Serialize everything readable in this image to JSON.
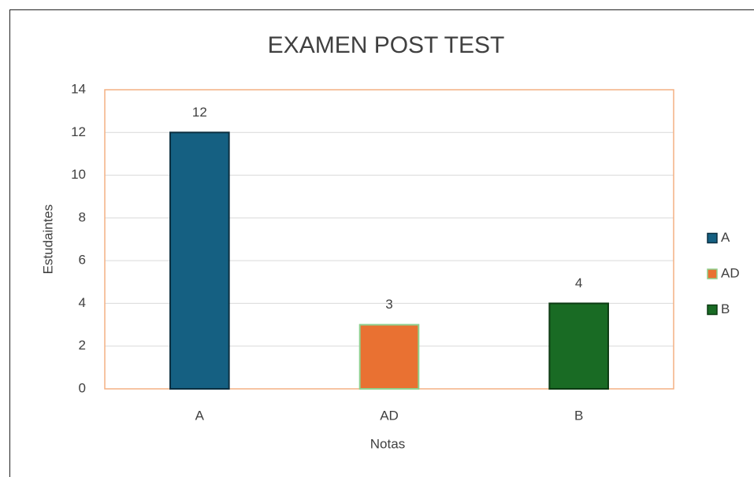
{
  "chart_data": {
    "type": "bar",
    "title": "EXAMEN POST TEST",
    "x_label": "Notas",
    "y_label": "Estudaintes",
    "categories": [
      "A",
      "AD",
      "B"
    ],
    "values": [
      12,
      3,
      4
    ],
    "colors": [
      "#156082",
      "#e97132",
      "#196b24"
    ],
    "edgecolors": [
      "#0b2f40",
      "#8ed08e",
      "#0c3a12"
    ],
    "ylim": [
      0,
      14
    ],
    "yticks": [
      0,
      2,
      4,
      6,
      8,
      10,
      12,
      14
    ],
    "grid": true,
    "legend": "right"
  }
}
